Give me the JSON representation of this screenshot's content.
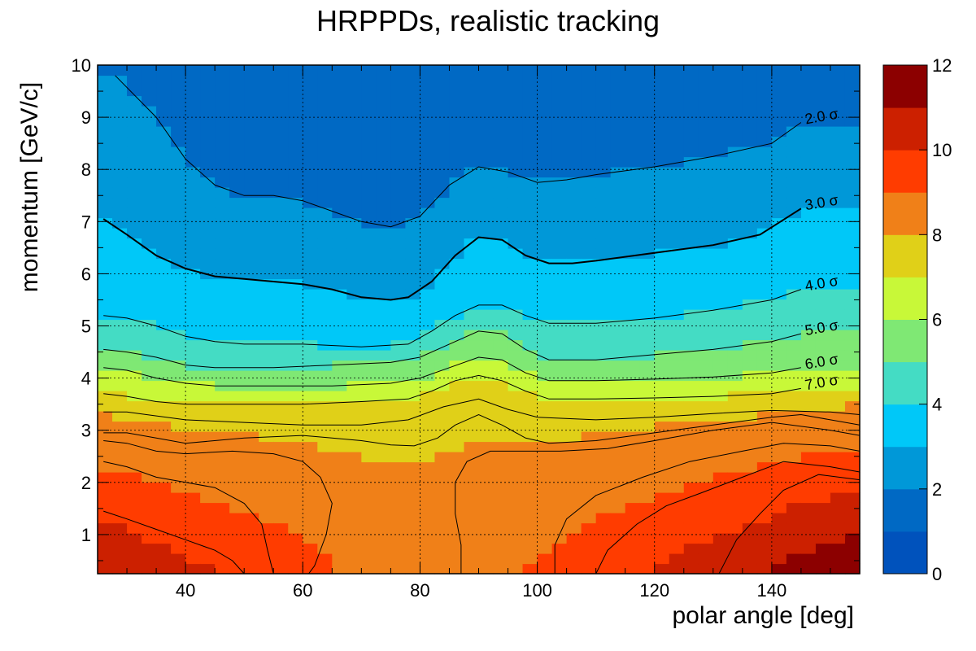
{
  "chart_data": {
    "type": "heatmap",
    "title": "HRPPDs, realistic tracking",
    "xlabel": "polar angle [deg]",
    "ylabel": "momentum [GeV/c]",
    "xlim": [
      25,
      155
    ],
    "ylim": [
      0.25,
      10
    ],
    "x_ticks": [
      40,
      60,
      80,
      100,
      120,
      140
    ],
    "y_ticks": [
      1,
      2,
      3,
      4,
      5,
      6,
      7,
      8,
      9,
      10
    ],
    "grid": true,
    "value_unit": "sigma",
    "colorbar": {
      "min": 0,
      "max": 12,
      "ticks": [
        0,
        2,
        4,
        6,
        8,
        10,
        12
      ],
      "levels": 12,
      "colors": [
        "#0033aa",
        "#0052bc",
        "#0069c4",
        "#0098d8",
        "#00c8f8",
        "#44dcc4",
        "#7fe874",
        "#c8f838",
        "#e0d018",
        "#f08018",
        "#ff3c00",
        "#cc2000",
        "#8c0000"
      ]
    },
    "contours": [
      {
        "label": "2.0 σ",
        "level": 2.0,
        "points": [
          [
            28,
            9.8
          ],
          [
            35,
            9.0
          ],
          [
            40,
            8.2
          ],
          [
            45,
            7.7
          ],
          [
            50,
            7.5
          ],
          [
            55,
            7.5
          ],
          [
            60,
            7.4
          ],
          [
            65,
            7.2
          ],
          [
            70,
            7.0
          ],
          [
            75,
            6.9
          ],
          [
            80,
            7.1
          ],
          [
            85,
            7.7
          ],
          [
            90,
            8.05
          ],
          [
            95,
            7.95
          ],
          [
            100,
            7.75
          ],
          [
            105,
            7.8
          ],
          [
            110,
            7.9
          ],
          [
            120,
            8.05
          ],
          [
            130,
            8.25
          ],
          [
            140,
            8.5
          ],
          [
            145,
            8.9
          ]
        ]
      },
      {
        "label": "3.0 σ",
        "level": 3.0,
        "points": [
          [
            26,
            7.05
          ],
          [
            30,
            6.75
          ],
          [
            35,
            6.35
          ],
          [
            40,
            6.1
          ],
          [
            45,
            5.95
          ],
          [
            50,
            5.9
          ],
          [
            55,
            5.85
          ],
          [
            60,
            5.8
          ],
          [
            65,
            5.7
          ],
          [
            70,
            5.55
          ],
          [
            75,
            5.5
          ],
          [
            78,
            5.55
          ],
          [
            82,
            5.85
          ],
          [
            86,
            6.35
          ],
          [
            90,
            6.7
          ],
          [
            94,
            6.65
          ],
          [
            98,
            6.35
          ],
          [
            102,
            6.2
          ],
          [
            106,
            6.2
          ],
          [
            110,
            6.25
          ],
          [
            120,
            6.4
          ],
          [
            130,
            6.55
          ],
          [
            138,
            6.75
          ],
          [
            145,
            7.25
          ]
        ]
      },
      {
        "label": "4.0 σ",
        "level": 4.0,
        "points": [
          [
            26,
            5.2
          ],
          [
            30,
            5.15
          ],
          [
            35,
            5.0
          ],
          [
            40,
            4.8
          ],
          [
            45,
            4.7
          ],
          [
            50,
            4.65
          ],
          [
            60,
            4.65
          ],
          [
            70,
            4.6
          ],
          [
            78,
            4.65
          ],
          [
            82,
            4.9
          ],
          [
            86,
            5.2
          ],
          [
            90,
            5.4
          ],
          [
            94,
            5.4
          ],
          [
            98,
            5.2
          ],
          [
            102,
            5.05
          ],
          [
            110,
            5.05
          ],
          [
            120,
            5.15
          ],
          [
            130,
            5.3
          ],
          [
            140,
            5.5
          ],
          [
            145,
            5.7
          ]
        ]
      },
      {
        "label": "5.0 σ",
        "level": 5.0,
        "points": [
          [
            26,
            4.55
          ],
          [
            30,
            4.5
          ],
          [
            35,
            4.4
          ],
          [
            40,
            4.25
          ],
          [
            45,
            4.2
          ],
          [
            55,
            4.2
          ],
          [
            65,
            4.25
          ],
          [
            75,
            4.3
          ],
          [
            80,
            4.4
          ],
          [
            85,
            4.65
          ],
          [
            90,
            4.9
          ],
          [
            94,
            4.85
          ],
          [
            98,
            4.55
          ],
          [
            102,
            4.35
          ],
          [
            110,
            4.35
          ],
          [
            120,
            4.45
          ],
          [
            130,
            4.55
          ],
          [
            140,
            4.7
          ],
          [
            145,
            4.85
          ]
        ]
      },
      {
        "label": "6.0 σ",
        "level": 6.0,
        "points": [
          [
            26,
            4.2
          ],
          [
            30,
            4.15
          ],
          [
            35,
            4.0
          ],
          [
            40,
            3.9
          ],
          [
            45,
            3.85
          ],
          [
            55,
            3.85
          ],
          [
            65,
            3.85
          ],
          [
            75,
            3.9
          ],
          [
            80,
            4.0
          ],
          [
            85,
            4.2
          ],
          [
            90,
            4.4
          ],
          [
            94,
            4.35
          ],
          [
            98,
            4.1
          ],
          [
            102,
            3.95
          ],
          [
            110,
            3.95
          ],
          [
            120,
            3.98
          ],
          [
            130,
            4.02
          ],
          [
            140,
            4.1
          ],
          [
            145,
            4.2
          ]
        ]
      },
      {
        "label": "7.0 σ",
        "level": 7.0,
        "points": [
          [
            26,
            3.7
          ],
          [
            30,
            3.65
          ],
          [
            35,
            3.55
          ],
          [
            40,
            3.5
          ],
          [
            50,
            3.5
          ],
          [
            60,
            3.5
          ],
          [
            70,
            3.55
          ],
          [
            78,
            3.6
          ],
          [
            82,
            3.75
          ],
          [
            86,
            3.95
          ],
          [
            90,
            4.05
          ],
          [
            94,
            3.95
          ],
          [
            98,
            3.75
          ],
          [
            102,
            3.6
          ],
          [
            110,
            3.6
          ],
          [
            120,
            3.62
          ],
          [
            130,
            3.65
          ],
          [
            140,
            3.7
          ],
          [
            145,
            3.8
          ]
        ]
      },
      {
        "label": "",
        "level": 7.5,
        "points": [
          [
            26,
            3.35
          ],
          [
            30,
            3.35
          ],
          [
            40,
            3.2
          ],
          [
            50,
            3.15
          ],
          [
            60,
            3.1
          ],
          [
            70,
            3.1
          ],
          [
            78,
            3.2
          ],
          [
            84,
            3.45
          ],
          [
            90,
            3.6
          ],
          [
            95,
            3.4
          ],
          [
            100,
            3.25
          ],
          [
            110,
            3.2
          ],
          [
            120,
            3.25
          ],
          [
            130,
            3.32
          ],
          [
            140,
            3.38
          ],
          [
            150,
            3.35
          ],
          [
            155,
            3.3
          ]
        ]
      },
      {
        "label": "",
        "level": 8.0,
        "points": [
          [
            26,
            2.95
          ],
          [
            30,
            2.95
          ],
          [
            35,
            2.85
          ],
          [
            40,
            2.75
          ],
          [
            50,
            2.85
          ],
          [
            60,
            2.9
          ],
          [
            65,
            2.85
          ],
          [
            70,
            2.8
          ],
          [
            75,
            2.72
          ],
          [
            79,
            2.7
          ],
          [
            83,
            2.85
          ],
          [
            86,
            3.1
          ],
          [
            90,
            3.3
          ],
          [
            94,
            3.1
          ],
          [
            98,
            2.85
          ],
          [
            102,
            2.75
          ],
          [
            110,
            2.8
          ],
          [
            120,
            2.95
          ],
          [
            130,
            3.1
          ],
          [
            140,
            3.25
          ],
          [
            145,
            3.3
          ],
          [
            150,
            3.2
          ],
          [
            155,
            3.1
          ]
        ]
      },
      {
        "label": "",
        "level": 8.5,
        "points": [
          [
            26,
            2.8
          ],
          [
            30,
            2.75
          ],
          [
            35,
            2.6
          ],
          [
            40,
            2.55
          ],
          [
            48,
            2.6
          ],
          [
            55,
            2.55
          ],
          [
            60,
            2.4
          ],
          [
            63,
            2.1
          ],
          [
            65,
            1.6
          ],
          [
            64,
            1.0
          ],
          [
            62,
            0.4
          ],
          [
            61,
            0.25
          ]
        ]
      },
      {
        "label": "",
        "level": 8.5,
        "points": [
          [
            87,
            0.25
          ],
          [
            87,
            0.8
          ],
          [
            86,
            1.4
          ],
          [
            86,
            2.0
          ],
          [
            88,
            2.4
          ],
          [
            92,
            2.6
          ],
          [
            98,
            2.6
          ],
          [
            104,
            2.6
          ],
          [
            112,
            2.65
          ],
          [
            120,
            2.8
          ],
          [
            130,
            3.0
          ],
          [
            140,
            3.15
          ],
          [
            150,
            3.0
          ],
          [
            155,
            2.9
          ]
        ]
      },
      {
        "label": "",
        "level": 9.0,
        "points": [
          [
            26,
            2.4
          ],
          [
            30,
            2.3
          ],
          [
            35,
            2.1
          ],
          [
            40,
            2.0
          ],
          [
            45,
            1.9
          ],
          [
            50,
            1.6
          ],
          [
            53,
            1.2
          ],
          [
            54,
            0.7
          ],
          [
            55,
            0.25
          ]
        ]
      },
      {
        "label": "",
        "level": 9.0,
        "points": [
          [
            103,
            0.25
          ],
          [
            103,
            0.8
          ],
          [
            105,
            1.3
          ],
          [
            110,
            1.75
          ],
          [
            118,
            2.1
          ],
          [
            126,
            2.4
          ],
          [
            135,
            2.6
          ],
          [
            142,
            2.75
          ],
          [
            150,
            2.7
          ],
          [
            155,
            2.6
          ]
        ]
      },
      {
        "label": "",
        "level": 10.0,
        "points": [
          [
            26,
            1.45
          ],
          [
            30,
            1.3
          ],
          [
            35,
            1.1
          ],
          [
            40,
            0.9
          ],
          [
            45,
            0.7
          ],
          [
            48,
            0.5
          ],
          [
            50,
            0.25
          ]
        ]
      },
      {
        "label": "",
        "level": 10.0,
        "points": [
          [
            110,
            0.25
          ],
          [
            112,
            0.7
          ],
          [
            117,
            1.2
          ],
          [
            122,
            1.55
          ],
          [
            128,
            1.8
          ],
          [
            135,
            2.1
          ],
          [
            142,
            2.4
          ],
          [
            150,
            2.3
          ],
          [
            155,
            2.2
          ]
        ]
      },
      {
        "label": "",
        "level": 11.0,
        "points": [
          [
            131,
            0.25
          ],
          [
            134,
            0.9
          ],
          [
            138,
            1.4
          ],
          [
            142,
            1.85
          ],
          [
            148,
            2.15
          ],
          [
            155,
            2.05
          ]
        ]
      }
    ]
  }
}
